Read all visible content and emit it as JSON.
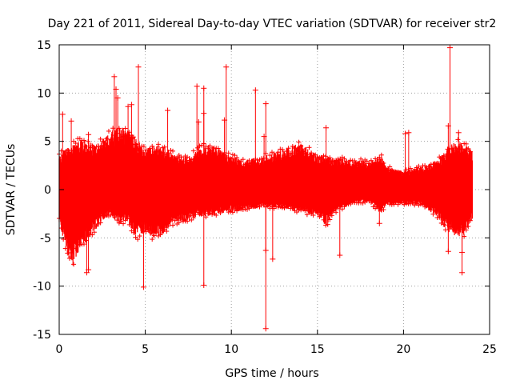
{
  "chart_data": {
    "type": "scatter",
    "title": "Day 221 of 2011, Sidereal Day-to-day VTEC variation (SDTVAR) for receiver str2",
    "xlabel": "GPS time / hours",
    "ylabel": "SDTVAR / TECUs",
    "xlim": [
      0,
      25
    ],
    "ylim": [
      -15,
      15
    ],
    "xticks": [
      0,
      5,
      10,
      15,
      20,
      25
    ],
    "yticks": [
      -15,
      -10,
      -5,
      0,
      5,
      10,
      15
    ],
    "xtick_labels": [
      "0",
      "5",
      "10",
      "15",
      "20",
      "25"
    ],
    "ytick_labels": [
      "-15",
      "-10",
      "-5",
      "0",
      "5",
      "10",
      "15"
    ],
    "grid": true,
    "marker": "+",
    "color": "#ff0000",
    "series": [
      {
        "name": "SDTVAR",
        "envelope": {
          "x": [
            0.0,
            0.5,
            0.8,
            1.2,
            1.6,
            2.0,
            2.5,
            3.0,
            3.5,
            4.0,
            4.5,
            5.0,
            5.5,
            6.0,
            6.5,
            7.0,
            7.5,
            8.0,
            8.5,
            9.0,
            9.5,
            10.0,
            11.0,
            12.0,
            13.0,
            14.0,
            15.0,
            15.5,
            16.0,
            17.0,
            18.0,
            18.7,
            19.0,
            20.0,
            21.0,
            22.0,
            22.5,
            23.0,
            23.5,
            24.0
          ],
          "upper": [
            3.5,
            4.3,
            4.6,
            4.9,
            4.8,
            4.5,
            4.9,
            5.8,
            6.2,
            6.0,
            5.0,
            4.0,
            4.4,
            4.3,
            3.8,
            3.4,
            3.3,
            4.0,
            4.5,
            4.3,
            3.8,
            3.3,
            3.0,
            3.4,
            4.0,
            4.6,
            3.5,
            3.4,
            3.2,
            3.0,
            2.8,
            3.4,
            2.3,
            1.8,
            2.3,
            3.0,
            4.2,
            4.8,
            4.6,
            3.8
          ],
          "lower": [
            -3.5,
            -6.5,
            -7.8,
            -6.0,
            -5.0,
            -4.2,
            -3.0,
            -2.6,
            -3.5,
            -3.3,
            -4.8,
            -4.2,
            -4.8,
            -4.5,
            -3.6,
            -3.2,
            -3.2,
            -2.7,
            -2.7,
            -2.5,
            -2.3,
            -2.2,
            -2.0,
            -1.8,
            -1.9,
            -2.2,
            -2.6,
            -3.6,
            -2.2,
            -1.4,
            -1.2,
            -2.4,
            -1.5,
            -1.5,
            -1.5,
            -2.7,
            -4.0,
            -4.8,
            -4.5,
            -3.0
          ]
        },
        "outliers": [
          {
            "x": 0.2,
            "y": 7.8
          },
          {
            "x": 0.7,
            "y": 7.1
          },
          {
            "x": 1.7,
            "y": 5.7
          },
          {
            "x": 1.7,
            "y": -8.3
          },
          {
            "x": 1.6,
            "y": -8.6
          },
          {
            "x": 3.2,
            "y": 11.7
          },
          {
            "x": 3.3,
            "y": 10.4
          },
          {
            "x": 3.4,
            "y": 9.5
          },
          {
            "x": 4.0,
            "y": 8.6
          },
          {
            "x": 4.2,
            "y": 8.8
          },
          {
            "x": 4.6,
            "y": 12.7
          },
          {
            "x": 4.9,
            "y": -10.1
          },
          {
            "x": 6.3,
            "y": 8.2
          },
          {
            "x": 8.0,
            "y": 10.7
          },
          {
            "x": 8.1,
            "y": 7.0
          },
          {
            "x": 8.4,
            "y": 10.5
          },
          {
            "x": 8.4,
            "y": 7.9
          },
          {
            "x": 8.4,
            "y": -9.9
          },
          {
            "x": 9.7,
            "y": 12.7
          },
          {
            "x": 9.6,
            "y": 7.2
          },
          {
            "x": 11.4,
            "y": 10.3
          },
          {
            "x": 12.0,
            "y": 8.9
          },
          {
            "x": 11.9,
            "y": 5.5
          },
          {
            "x": 12.0,
            "y": -14.4
          },
          {
            "x": 12.0,
            "y": -6.3
          },
          {
            "x": 12.4,
            "y": -7.2
          },
          {
            "x": 15.5,
            "y": 6.4
          },
          {
            "x": 16.3,
            "y": -6.8
          },
          {
            "x": 18.6,
            "y": -3.5
          },
          {
            "x": 20.1,
            "y": 5.8
          },
          {
            "x": 20.3,
            "y": 5.9
          },
          {
            "x": 22.6,
            "y": 6.6
          },
          {
            "x": 22.7,
            "y": 14.7
          },
          {
            "x": 22.6,
            "y": -6.4
          },
          {
            "x": 23.2,
            "y": 5.9
          },
          {
            "x": 23.4,
            "y": -6.5
          },
          {
            "x": 23.4,
            "y": -8.6
          }
        ]
      }
    ]
  }
}
